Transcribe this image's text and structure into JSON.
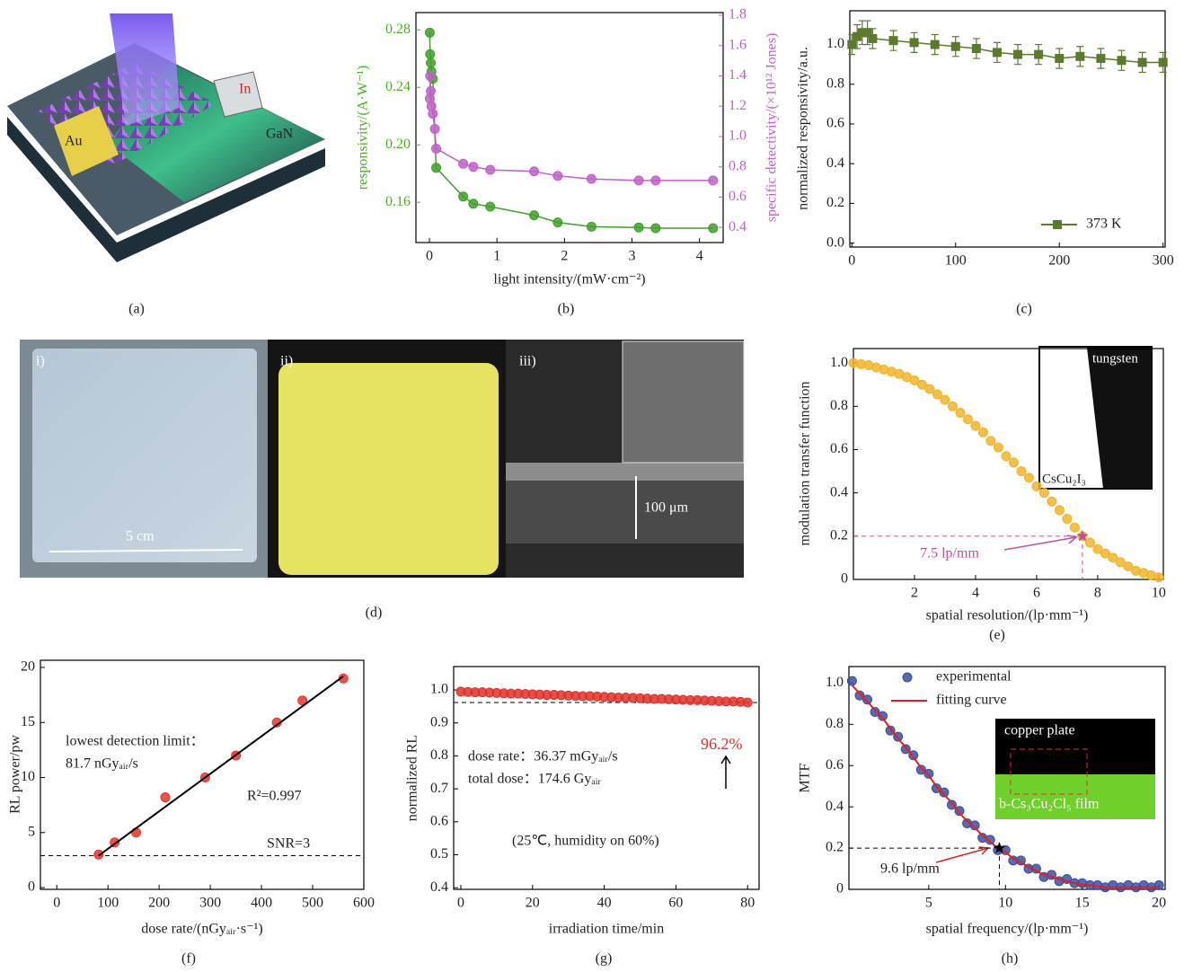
{
  "figure": {
    "panel_a": {
      "labels": [
        "Au",
        "In",
        "GaN"
      ],
      "caption": "(a)"
    },
    "panel_d": {
      "labels": [
        "i)",
        "ii)",
        "iii)",
        "5 cm",
        "100 μm"
      ],
      "caption": "(d)"
    }
  },
  "chart_data": [
    {
      "type": "line",
      "caption": "(b)",
      "x_label": "light intensity/(mW·cm⁻²)",
      "y_label": "responsivity/(A·W⁻¹)",
      "y2_label": "specific detectivity/(×10¹² Jones)",
      "y_color": "#4caf20",
      "y2_color": "#c060c8",
      "xlim": [
        -0.2,
        4.35
      ],
      "xticks": [
        0,
        1,
        2,
        3,
        4
      ],
      "ylim": [
        0.132,
        0.292
      ],
      "yticks": [
        0.16,
        {
          "value": 0.2,
          "label": "0.20"
        },
        0.24,
        0.28
      ],
      "y2lim": [
        0.3,
        1.818
      ],
      "y2ticks": [
        0.4,
        0.6,
        0.8,
        {
          "value": 1,
          "label": "1.0"
        },
        1.2,
        1.4,
        1.6,
        1.8
      ],
      "series": [
        {
          "color": "#3fa02a",
          "mode": "lines+markers",
          "marker": "circle",
          "x": [
            0.005,
            0.01,
            0.02,
            0.03,
            0.05,
            0.1,
            0.5,
            0.65,
            0.9,
            1.55,
            1.9,
            2.4,
            3.1,
            3.35,
            4.2
          ],
          "values": [
            0.278,
            0.263,
            0.257,
            0.251,
            0.246,
            0.184,
            0.164,
            0.159,
            0.157,
            0.151,
            0.146,
            0.143,
            0.1425,
            0.142,
            0.142
          ]
        },
        {
          "color": "#c060c8",
          "mode": "lines+markers",
          "marker": "circle",
          "axis": "y2",
          "x": [
            0.005,
            0.01,
            0.02,
            0.03,
            0.05,
            0.08,
            0.1,
            0.5,
            0.65,
            0.9,
            1.55,
            1.9,
            2.4,
            3.1,
            3.35,
            4.2
          ],
          "values": [
            1.25,
            1.4,
            1.3,
            1.2,
            1.15,
            1.05,
            0.92,
            0.82,
            0.8,
            0.78,
            0.77,
            0.74,
            0.72,
            0.71,
            0.71,
            0.71
          ]
        }
      ]
    },
    {
      "type": "line",
      "caption": "(c)",
      "y_label": "normalized responsivity/a.u.",
      "legend": "lower right",
      "xlim": [
        -2,
        302
      ],
      "xticks": [
        0,
        100,
        200,
        300
      ],
      "ylim": [
        -0.02,
        1.17
      ],
      "yticks": [
        {
          "value": 0,
          "label": "0.0"
        },
        0.2,
        0.4,
        0.6,
        0.8,
        {
          "value": 1,
          "label": "1.0"
        }
      ],
      "series": [
        {
          "name": "373 K",
          "color": "#5b7a2e",
          "mode": "lines+markers",
          "marker": "square",
          "x": [
            0,
            5,
            10,
            15,
            20,
            40,
            60,
            80,
            100,
            120,
            140,
            160,
            180,
            200,
            220,
            240,
            260,
            280,
            300
          ],
          "values": [
            1.0,
            1.04,
            1.06,
            1.06,
            1.03,
            1.02,
            1.01,
            1.0,
            0.99,
            0.98,
            0.96,
            0.95,
            0.95,
            0.93,
            0.94,
            0.93,
            0.92,
            0.91,
            0.91
          ],
          "errors": [
            0.05,
            0.06,
            0.06,
            0.06,
            0.05,
            0.05,
            0.05,
            0.05,
            0.05,
            0.05,
            0.05,
            0.05,
            0.05,
            0.05,
            0.05,
            0.05,
            0.05,
            0.05,
            0.05
          ]
        }
      ]
    },
    {
      "type": "scatter",
      "caption": "(e)",
      "x_label": "spatial resolution/(lp·mm⁻¹)",
      "y_label": "modulation transfer function",
      "xlim": [
        0,
        10.15
      ],
      "xticks": [
        2,
        4,
        6,
        8,
        10
      ],
      "ylim": [
        0,
        1.067
      ],
      "yticks": [
        0,
        0.2,
        0.4,
        0.6,
        0.8,
        {
          "value": 1,
          "label": "1.0"
        }
      ],
      "annotations": [
        "7.5 lp/mm"
      ],
      "highlight": {
        "x": 7.5,
        "y": 0.2,
        "color": "#c0509a"
      },
      "inset_labels": [
        "tungsten",
        "CsCu₂I₃"
      ],
      "series": [
        {
          "color": "#f0b429",
          "mode": "markers",
          "marker": "circle",
          "x": [
            0,
            0.25,
            0.5,
            0.75,
            1,
            1.25,
            1.5,
            1.75,
            2,
            2.25,
            2.5,
            2.75,
            3,
            3.25,
            3.5,
            3.75,
            4,
            4.25,
            4.5,
            4.75,
            5,
            5.25,
            5.5,
            5.75,
            6,
            6.25,
            6.5,
            6.75,
            7,
            7.25,
            7.5,
            7.75,
            8,
            8.25,
            8.5,
            8.75,
            9,
            9.25,
            9.5,
            9.75,
            10
          ],
          "values": [
            1.0,
            0.995,
            0.99,
            0.98,
            0.97,
            0.96,
            0.95,
            0.935,
            0.92,
            0.9,
            0.88,
            0.855,
            0.83,
            0.8,
            0.77,
            0.74,
            0.71,
            0.68,
            0.64,
            0.61,
            0.57,
            0.54,
            0.5,
            0.47,
            0.43,
            0.4,
            0.36,
            0.32,
            0.28,
            0.24,
            0.2,
            0.17,
            0.14,
            0.12,
            0.1,
            0.08,
            0.06,
            0.04,
            0.03,
            0.02,
            0.01
          ]
        }
      ]
    },
    {
      "type": "scatter",
      "caption": "(f)",
      "x_label": "dose rate/(nGyₐᵢᵣ·s⁻¹)",
      "y_label": "RL power/pw",
      "xlim": [
        -32,
        600
      ],
      "xticks": [
        0,
        100,
        200,
        300,
        400,
        500,
        600
      ],
      "ylim": [
        -0.16,
        20.65
      ],
      "yticks": [
        0,
        5,
        10,
        15,
        20
      ],
      "annotations": [
        "lowest detection limit：",
        "81.7 nGyₐᵢᵣ/s",
        "R²=0.997",
        "SNR=3"
      ],
      "hlines": [
        2.9
      ],
      "series": [
        {
          "color": "#e8352a",
          "mode": "markers",
          "marker": "circle",
          "x": [
            81.7,
            113,
            155,
            212,
            290,
            350,
            430,
            480,
            560
          ],
          "values": [
            3,
            4.1,
            5,
            8.2,
            10,
            12,
            15,
            17,
            19
          ]
        },
        {
          "color": "#000000",
          "mode": "lines",
          "x": [
            81.7,
            560
          ],
          "values": [
            2.9,
            19.2
          ]
        }
      ]
    },
    {
      "type": "scatter",
      "caption": "(g)",
      "x_label": "irradiation time/min",
      "y_label": "normalized RL",
      "xlim": [
        -2,
        83.2
      ],
      "xticks": [
        0,
        20,
        40,
        60,
        80
      ],
      "ylim": [
        0.395,
        1.071
      ],
      "yticks": [
        0.4,
        0.5,
        0.6,
        0.7,
        0.8,
        0.9,
        {
          "value": 1,
          "label": "1.0"
        }
      ],
      "annotations": [
        "dose rate：36.37 mGyₐᵢᵣ/s",
        "total dose：174.6 Gyₐᵢᵣ",
        "(25℃, humidity on 60%)"
      ],
      "hlines": [
        0.962
      ],
      "hline_labels": [
        "96.2%"
      ],
      "hline_label_color": "#e0302a",
      "series": [
        {
          "color": "#e0302a",
          "mode": "markers",
          "marker": "circle",
          "x": [
            0,
            2,
            4,
            6,
            8,
            10,
            12,
            14,
            16,
            18,
            20,
            22,
            24,
            26,
            28,
            30,
            32,
            34,
            36,
            38,
            40,
            42,
            44,
            46,
            48,
            50,
            52,
            54,
            56,
            58,
            60,
            62,
            64,
            66,
            68,
            70,
            72,
            74,
            76,
            78,
            80
          ],
          "values": [
            0.995,
            0.994,
            0.993,
            0.993,
            0.992,
            0.991,
            0.99,
            0.989,
            0.989,
            0.988,
            0.987,
            0.986,
            0.985,
            0.985,
            0.984,
            0.983,
            0.982,
            0.981,
            0.981,
            0.98,
            0.979,
            0.978,
            0.977,
            0.977,
            0.976,
            0.975,
            0.974,
            0.973,
            0.973,
            0.972,
            0.971,
            0.97,
            0.969,
            0.969,
            0.968,
            0.967,
            0.966,
            0.965,
            0.965,
            0.964,
            0.962
          ]
        }
      ]
    },
    {
      "type": "scatter",
      "caption": "(h)",
      "x_label": "spatial frequency/(lp·mm⁻¹)",
      "y_label": "MTF",
      "legend": "upper left",
      "xlim": [
        -0.2,
        20.4
      ],
      "xticks": [
        5,
        10,
        15,
        20
      ],
      "ylim": [
        0,
        1.08
      ],
      "yticks": [
        0,
        0.2,
        0.4,
        0.6,
        0.8,
        {
          "value": 1,
          "label": "1.0"
        }
      ],
      "annotations": [
        "9.6 lp/mm"
      ],
      "highlight": {
        "x": 9.6,
        "y": 0.2,
        "color": "#000000"
      },
      "inset_labels": [
        "copper plate",
        "b-Cs₃Cu₂Cl₅ film"
      ],
      "x": [
        0,
        0.5,
        1,
        1.5,
        2,
        2.5,
        3,
        3.5,
        4,
        4.5,
        5,
        5.5,
        6,
        6.5,
        7,
        7.5,
        8,
        8.5,
        9,
        9.5,
        10,
        10.5,
        11,
        11.5,
        12,
        12.5,
        13,
        13.5,
        14,
        14.5,
        15,
        15.5,
        16,
        16.5,
        17,
        17.5,
        18,
        18.5,
        19,
        19.5,
        20
      ],
      "series": [
        {
          "name": "experimental",
          "color": "#3b4fa0",
          "mode": "markers",
          "marker": "circle",
          "values": [
            1.01,
            0.94,
            0.92,
            0.86,
            0.84,
            0.77,
            0.74,
            0.68,
            0.65,
            0.58,
            0.56,
            0.49,
            0.47,
            0.41,
            0.38,
            0.32,
            0.31,
            0.25,
            0.24,
            0.19,
            0.19,
            0.14,
            0.14,
            0.1,
            0.1,
            0.06,
            0.07,
            0.04,
            0.05,
            0.03,
            0.03,
            0.02,
            0.02,
            0.01,
            0.02,
            0.01,
            0.02,
            0.01,
            0.02,
            0.01,
            0.02
          ]
        },
        {
          "name": "fitting curve",
          "color": "#e02020",
          "mode": "lines",
          "values": [
            0.99,
            0.95,
            0.91,
            0.87,
            0.83,
            0.78,
            0.73,
            0.69,
            0.64,
            0.59,
            0.55,
            0.5,
            0.46,
            0.42,
            0.37,
            0.33,
            0.3,
            0.26,
            0.23,
            0.2,
            0.18,
            0.15,
            0.13,
            0.11,
            0.09,
            0.07,
            0.06,
            0.05,
            0.04,
            0.03,
            0.02,
            0.02,
            0.015,
            0.01,
            0.01,
            0.01,
            0.01,
            0.01,
            0.01,
            0.01,
            0.01
          ]
        }
      ]
    }
  ]
}
